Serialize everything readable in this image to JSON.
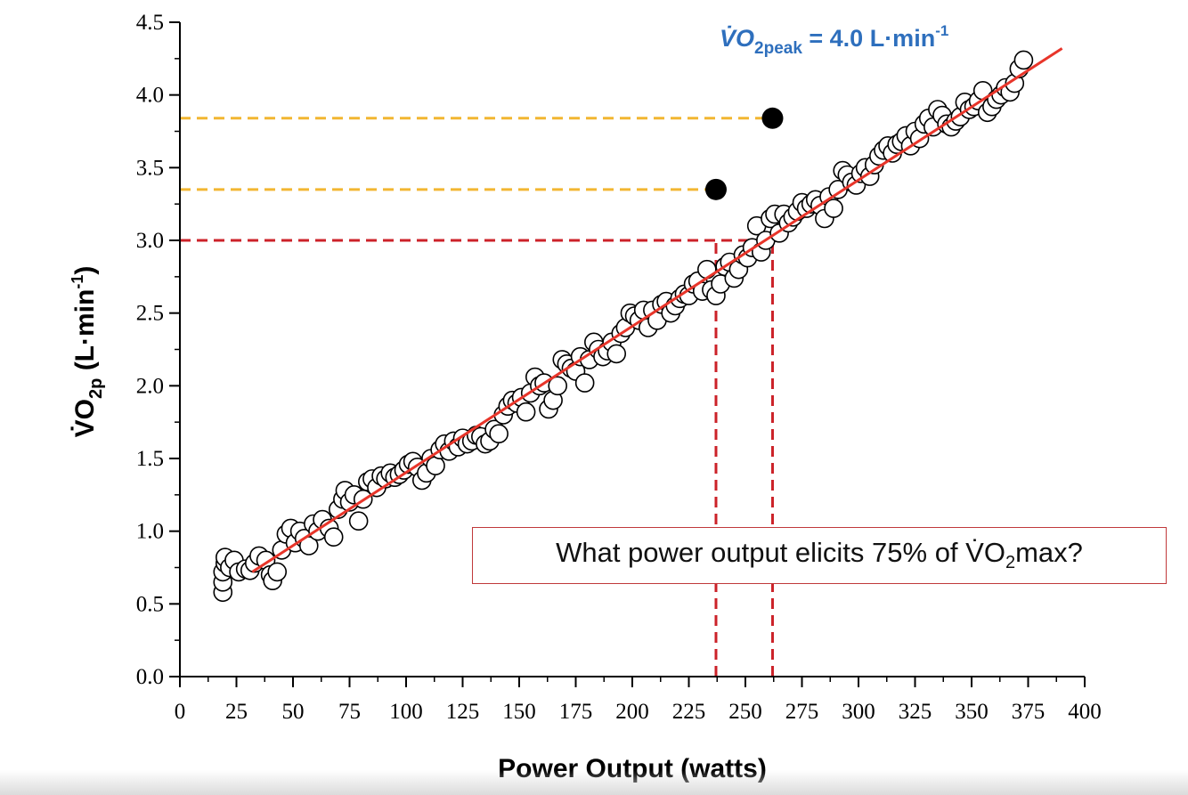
{
  "chart_data": {
    "type": "scatter",
    "xlabel": "Power Output (watts)",
    "ylabel": {
      "prefix": "V̇O",
      "sub": "2p",
      "suffix": " (L·min",
      "sup": "-1",
      "close": ")"
    },
    "xlim": [
      0,
      400
    ],
    "ylim": [
      0,
      4.5
    ],
    "x_ticks": [
      0,
      25,
      50,
      75,
      100,
      125,
      150,
      175,
      200,
      225,
      250,
      275,
      300,
      325,
      350,
      375,
      400
    ],
    "x_tick_labels": [
      "0",
      "25",
      "50",
      "75",
      "100",
      "125",
      "150",
      "175",
      "200",
      "225",
      "250",
      "275",
      "300",
      "325",
      "350",
      "375",
      "400"
    ],
    "y_ticks": [
      0,
      0.5,
      1.0,
      1.5,
      2.0,
      2.5,
      3.0,
      3.5,
      4.0,
      4.5
    ],
    "y_tick_labels": [
      "0.0",
      "0.5",
      "1.0",
      "1.5",
      "2.0",
      "2.5",
      "3.0",
      "3.5",
      "4.0",
      "4.5"
    ],
    "peak_annotation": {
      "prefix": "V̇O",
      "sub": "2peak",
      "mid": " = 4.0 L·min",
      "sup": "-1"
    },
    "question": {
      "prefix": "What power output elicits 75% of V̇O",
      "sub": "2",
      "suffix": "max?"
    },
    "regression_line": {
      "x": [
        32,
        390
      ],
      "y": [
        0.72,
        4.32
      ],
      "color": "#e8352a"
    },
    "highlight_points": [
      {
        "x": 237,
        "y": 3.35
      },
      {
        "x": 262,
        "y": 3.84
      }
    ],
    "reference_lines": [
      {
        "kind": "horizontal",
        "y": 3.84,
        "x_from": 0,
        "x_to": 262,
        "color": "#f2b632"
      },
      {
        "kind": "horizontal",
        "y": 3.35,
        "x_from": 0,
        "x_to": 237,
        "color": "#f2b632"
      },
      {
        "kind": "horizontal",
        "y": 3.0,
        "x_from": 0,
        "x_to": 262,
        "color": "#cc2229"
      },
      {
        "kind": "vertical",
        "x": 237,
        "y_from": 0,
        "y_to": 3.0,
        "color": "#cc2229"
      },
      {
        "kind": "vertical",
        "x": 262,
        "y_from": 0,
        "y_to": 3.0,
        "color": "#cc2229"
      }
    ],
    "points": [
      [
        19,
        0.58
      ],
      [
        19,
        0.65
      ],
      [
        19,
        0.72
      ],
      [
        20,
        0.78
      ],
      [
        20,
        0.82
      ],
      [
        22,
        0.75
      ],
      [
        24,
        0.8
      ],
      [
        26,
        0.72
      ],
      [
        29,
        0.74
      ],
      [
        31,
        0.73
      ],
      [
        33,
        0.78
      ],
      [
        35,
        0.83
      ],
      [
        38,
        0.8
      ],
      [
        40,
        0.7
      ],
      [
        41,
        0.66
      ],
      [
        43,
        0.72
      ],
      [
        45,
        0.87
      ],
      [
        47,
        0.98
      ],
      [
        49,
        1.02
      ],
      [
        51,
        0.92
      ],
      [
        53,
        1.0
      ],
      [
        55,
        0.95
      ],
      [
        57,
        0.9
      ],
      [
        59,
        1.05
      ],
      [
        61,
        1.0
      ],
      [
        63,
        1.08
      ],
      [
        66,
        1.02
      ],
      [
        68,
        0.96
      ],
      [
        70,
        1.15
      ],
      [
        72,
        1.22
      ],
      [
        73,
        1.28
      ],
      [
        75,
        1.2
      ],
      [
        77,
        1.25
      ],
      [
        79,
        1.07
      ],
      [
        81,
        1.22
      ],
      [
        83,
        1.34
      ],
      [
        85,
        1.36
      ],
      [
        87,
        1.3
      ],
      [
        89,
        1.38
      ],
      [
        91,
        1.36
      ],
      [
        93,
        1.4
      ],
      [
        95,
        1.37
      ],
      [
        97,
        1.39
      ],
      [
        99,
        1.42
      ],
      [
        101,
        1.46
      ],
      [
        103,
        1.48
      ],
      [
        105,
        1.44
      ],
      [
        107,
        1.35
      ],
      [
        109,
        1.4
      ],
      [
        111,
        1.5
      ],
      [
        113,
        1.45
      ],
      [
        115,
        1.56
      ],
      [
        117,
        1.6
      ],
      [
        119,
        1.55
      ],
      [
        121,
        1.62
      ],
      [
        123,
        1.58
      ],
      [
        125,
        1.64
      ],
      [
        127,
        1.6
      ],
      [
        129,
        1.62
      ],
      [
        131,
        1.66
      ],
      [
        133,
        1.65
      ],
      [
        135,
        1.6
      ],
      [
        137,
        1.62
      ],
      [
        139,
        1.7
      ],
      [
        141,
        1.67
      ],
      [
        143,
        1.8
      ],
      [
        145,
        1.86
      ],
      [
        147,
        1.9
      ],
      [
        149,
        1.88
      ],
      [
        151,
        1.92
      ],
      [
        153,
        1.82
      ],
      [
        155,
        1.95
      ],
      [
        157,
        2.06
      ],
      [
        159,
        2.0
      ],
      [
        161,
        2.02
      ],
      [
        163,
        1.84
      ],
      [
        165,
        1.9
      ],
      [
        167,
        2.0
      ],
      [
        169,
        2.18
      ],
      [
        171,
        2.15
      ],
      [
        173,
        2.12
      ],
      [
        175,
        2.1
      ],
      [
        177,
        2.2
      ],
      [
        179,
        2.02
      ],
      [
        181,
        2.18
      ],
      [
        183,
        2.3
      ],
      [
        185,
        2.25
      ],
      [
        187,
        2.2
      ],
      [
        189,
        2.24
      ],
      [
        191,
        2.3
      ],
      [
        193,
        2.22
      ],
      [
        195,
        2.36
      ],
      [
        197,
        2.4
      ],
      [
        199,
        2.5
      ],
      [
        201,
        2.48
      ],
      [
        203,
        2.45
      ],
      [
        205,
        2.52
      ],
      [
        207,
        2.4
      ],
      [
        209,
        2.52
      ],
      [
        211,
        2.45
      ],
      [
        213,
        2.56
      ],
      [
        215,
        2.58
      ],
      [
        217,
        2.5
      ],
      [
        219,
        2.55
      ],
      [
        221,
        2.6
      ],
      [
        223,
        2.63
      ],
      [
        225,
        2.62
      ],
      [
        227,
        2.7
      ],
      [
        229,
        2.72
      ],
      [
        231,
        2.65
      ],
      [
        233,
        2.8
      ],
      [
        235,
        2.66
      ],
      [
        237,
        2.62
      ],
      [
        239,
        2.7
      ],
      [
        241,
        2.82
      ],
      [
        243,
        2.85
      ],
      [
        245,
        2.74
      ],
      [
        247,
        2.8
      ],
      [
        249,
        2.9
      ],
      [
        251,
        2.88
      ],
      [
        253,
        2.95
      ],
      [
        255,
        3.1
      ],
      [
        257,
        2.92
      ],
      [
        259,
        3.0
      ],
      [
        261,
        3.15
      ],
      [
        263,
        3.18
      ],
      [
        265,
        3.05
      ],
      [
        267,
        3.18
      ],
      [
        269,
        3.12
      ],
      [
        271,
        3.16
      ],
      [
        273,
        3.2
      ],
      [
        275,
        3.26
      ],
      [
        277,
        3.22
      ],
      [
        279,
        3.25
      ],
      [
        281,
        3.28
      ],
      [
        283,
        3.24
      ],
      [
        285,
        3.15
      ],
      [
        287,
        3.3
      ],
      [
        289,
        3.22
      ],
      [
        291,
        3.35
      ],
      [
        293,
        3.48
      ],
      [
        295,
        3.45
      ],
      [
        297,
        3.4
      ],
      [
        299,
        3.38
      ],
      [
        301,
        3.46
      ],
      [
        303,
        3.5
      ],
      [
        305,
        3.44
      ],
      [
        307,
        3.52
      ],
      [
        309,
        3.58
      ],
      [
        311,
        3.62
      ],
      [
        313,
        3.65
      ],
      [
        315,
        3.6
      ],
      [
        317,
        3.66
      ],
      [
        319,
        3.68
      ],
      [
        321,
        3.72
      ],
      [
        323,
        3.65
      ],
      [
        325,
        3.75
      ],
      [
        327,
        3.7
      ],
      [
        329,
        3.8
      ],
      [
        331,
        3.84
      ],
      [
        333,
        3.78
      ],
      [
        335,
        3.9
      ],
      [
        337,
        3.86
      ],
      [
        339,
        3.8
      ],
      [
        341,
        3.78
      ],
      [
        343,
        3.82
      ],
      [
        345,
        3.85
      ],
      [
        347,
        3.95
      ],
      [
        349,
        3.9
      ],
      [
        351,
        3.92
      ],
      [
        353,
        3.96
      ],
      [
        355,
        4.03
      ],
      [
        357,
        3.88
      ],
      [
        359,
        3.92
      ],
      [
        361,
        3.97
      ],
      [
        363,
        4.0
      ],
      [
        365,
        4.05
      ],
      [
        367,
        4.02
      ],
      [
        369,
        4.08
      ],
      [
        371,
        4.18
      ],
      [
        373,
        4.24
      ]
    ]
  }
}
